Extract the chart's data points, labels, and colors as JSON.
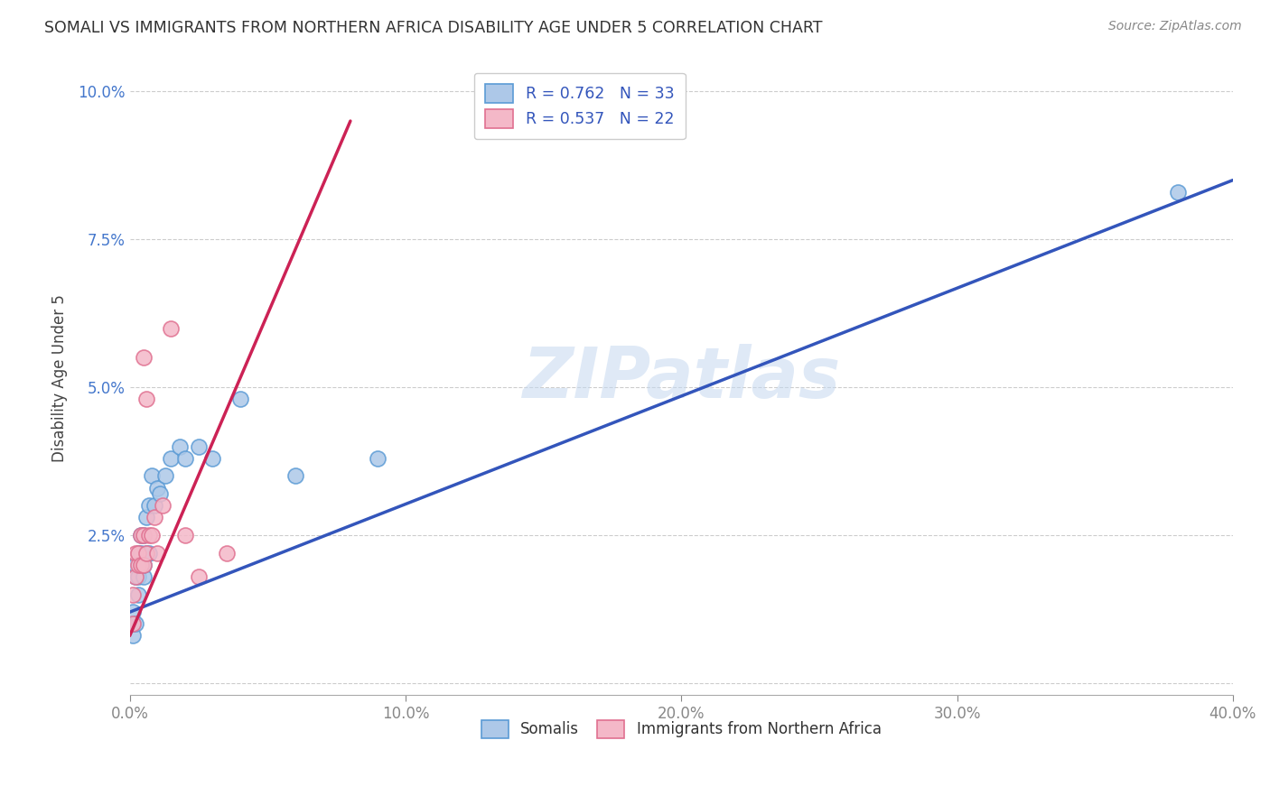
{
  "title": "SOMALI VS IMMIGRANTS FROM NORTHERN AFRICA DISABILITY AGE UNDER 5 CORRELATION CHART",
  "source": "Source: ZipAtlas.com",
  "ylabel_label": "Disability Age Under 5",
  "watermark": "ZIPatlas",
  "xlim": [
    0.0,
    0.4
  ],
  "ylim": [
    -0.002,
    0.105
  ],
  "xticks": [
    0.0,
    0.1,
    0.2,
    0.3,
    0.4
  ],
  "yticks": [
    0.0,
    0.025,
    0.05,
    0.075,
    0.1
  ],
  "somali_color": "#adc8e8",
  "somali_edge_color": "#5b9bd5",
  "northern_africa_color": "#f4b8c8",
  "northern_africa_edge_color": "#e07090",
  "trend_blue": "#3355bb",
  "trend_pink": "#cc2255",
  "R_somali": 0.762,
  "N_somali": 33,
  "R_northern": 0.537,
  "N_northern": 22,
  "legend_label_somali": "Somalis",
  "legend_label_northern": "Immigrants from Northern Africa",
  "somali_x": [
    0.001,
    0.001,
    0.001,
    0.002,
    0.002,
    0.002,
    0.003,
    0.003,
    0.003,
    0.004,
    0.004,
    0.004,
    0.005,
    0.005,
    0.005,
    0.006,
    0.006,
    0.007,
    0.007,
    0.008,
    0.009,
    0.01,
    0.011,
    0.013,
    0.015,
    0.018,
    0.02,
    0.025,
    0.03,
    0.04,
    0.06,
    0.09,
    0.38
  ],
  "somali_y": [
    0.008,
    0.01,
    0.012,
    0.01,
    0.018,
    0.02,
    0.015,
    0.018,
    0.022,
    0.02,
    0.022,
    0.025,
    0.018,
    0.02,
    0.025,
    0.022,
    0.028,
    0.022,
    0.03,
    0.035,
    0.03,
    0.033,
    0.032,
    0.035,
    0.038,
    0.04,
    0.038,
    0.04,
    0.038,
    0.048,
    0.035,
    0.038,
    0.083
  ],
  "northern_x": [
    0.001,
    0.001,
    0.002,
    0.002,
    0.003,
    0.003,
    0.004,
    0.004,
    0.005,
    0.005,
    0.005,
    0.006,
    0.006,
    0.007,
    0.008,
    0.009,
    0.01,
    0.012,
    0.015,
    0.02,
    0.025,
    0.035
  ],
  "northern_y": [
    0.01,
    0.015,
    0.018,
    0.022,
    0.02,
    0.022,
    0.02,
    0.025,
    0.02,
    0.025,
    0.055,
    0.022,
    0.048,
    0.025,
    0.025,
    0.028,
    0.022,
    0.03,
    0.06,
    0.025,
    0.018,
    0.022
  ],
  "blue_trend_x": [
    0.0,
    0.4
  ],
  "blue_trend_y": [
    0.012,
    0.085
  ],
  "pink_trend_x": [
    0.0,
    0.08
  ],
  "pink_trend_y": [
    0.008,
    0.095
  ]
}
